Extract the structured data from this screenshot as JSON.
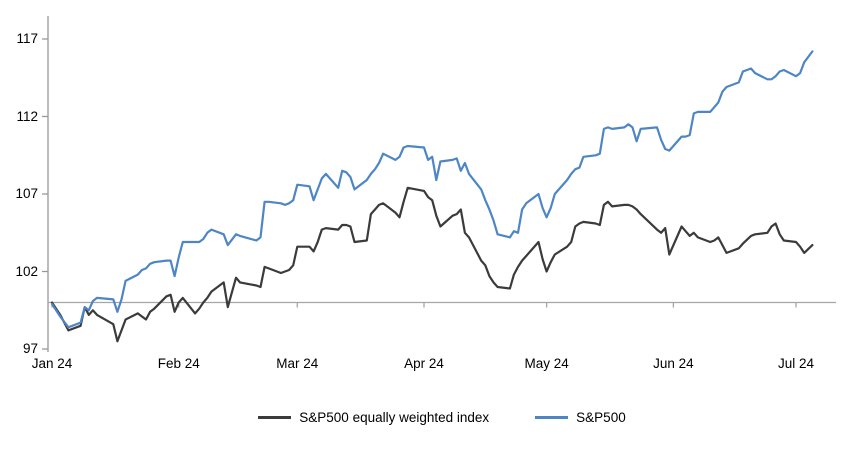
{
  "chart_data": {
    "type": "line",
    "title": "",
    "x_axis": {
      "tick_labels": [
        "Jan 24",
        "Feb 24",
        "Mar 24",
        "Apr 24",
        "May 24",
        "Jun 24",
        "Jul 24"
      ]
    },
    "y_axis": {
      "ticks": [
        117,
        112,
        107,
        102,
        97
      ],
      "min": 97,
      "max": 117,
      "baseline": 100
    },
    "grid": "off",
    "legend_position": "bottom-center",
    "legend": [
      {
        "label": "S&P500 equally weighted index",
        "color": "#3b3b3b"
      },
      {
        "label": "S&P500",
        "color": "#4e86c5"
      }
    ],
    "colors": {
      "axis": "#999999",
      "baseline": "#a6a6a6",
      "text": "#000000"
    },
    "dates": [
      "Jan 1",
      "Jan 3",
      "Jan 5",
      "Jan 8",
      "Jan 9",
      "Jan 10",
      "Jan 11",
      "Jan 12",
      "Jan 16",
      "Jan 17",
      "Jan 18",
      "Jan 19",
      "Jan 22",
      "Jan 23",
      "Jan 24",
      "Jan 25",
      "Jan 26",
      "Jan 29",
      "Jan 30",
      "Jan 31",
      "Feb 1",
      "Feb 2",
      "Feb 5",
      "Feb 6",
      "Feb 7",
      "Feb 8",
      "Feb 9",
      "Feb 12",
      "Feb 13",
      "Feb 15",
      "Feb 16",
      "Feb 20",
      "Feb 21",
      "Feb 22",
      "Feb 23",
      "Feb 26",
      "Feb 27",
      "Feb 28",
      "Feb 29",
      "Mar 1",
      "Mar 4",
      "Mar 5",
      "Mar 6",
      "Mar 7",
      "Mar 8",
      "Mar 11",
      "Mar 12",
      "Mar 13",
      "Mar 14",
      "Mar 15",
      "Mar 18",
      "Mar 19",
      "Mar 20",
      "Mar 21",
      "Mar 22",
      "Mar 25",
      "Mar 26",
      "Mar 27",
      "Mar 28",
      "Apr 1",
      "Apr 2",
      "Apr 3",
      "Apr 4",
      "Apr 5",
      "Apr 8",
      "Apr 9",
      "Apr 10",
      "Apr 11",
      "Apr 12",
      "Apr 15",
      "Apr 16",
      "Apr 17",
      "Apr 18",
      "Apr 19",
      "Apr 22",
      "Apr 23",
      "Apr 24",
      "Apr 25",
      "Apr 26",
      "Apr 29",
      "Apr 30",
      "May 1",
      "May 2",
      "May 3",
      "May 6",
      "May 7",
      "May 8",
      "May 9",
      "May 10",
      "May 13",
      "May 14",
      "May 15",
      "May 16",
      "May 17",
      "May 20",
      "May 21",
      "May 22",
      "May 23",
      "May 24",
      "May 28",
      "May 29",
      "May 30",
      "May 31",
      "Jun 3",
      "Jun 4",
      "Jun 5",
      "Jun 6",
      "Jun 7",
      "Jun 10",
      "Jun 11",
      "Jun 12",
      "Jun 13",
      "Jun 14",
      "Jun 17",
      "Jun 18",
      "Jun 20",
      "Jun 21",
      "Jun 24",
      "Jun 25",
      "Jun 26",
      "Jun 27",
      "Jun 28",
      "Jul 1",
      "Jul 2",
      "Jul 3",
      "Jul 5"
    ],
    "series": [
      {
        "name": "S&P500 equally weighted index",
        "color": "#3b3b3b",
        "values": [
          100.0,
          99.2,
          98.2,
          98.5,
          99.7,
          99.2,
          99.5,
          99.2,
          98.6,
          97.5,
          98.2,
          98.9,
          99.3,
          99.1,
          98.9,
          99.4,
          99.6,
          100.4,
          100.5,
          99.4,
          100.0,
          100.3,
          99.3,
          99.6,
          100.0,
          100.3,
          100.7,
          101.3,
          99.7,
          101.6,
          101.3,
          101.1,
          101.0,
          102.3,
          102.2,
          101.9,
          102.0,
          102.1,
          102.4,
          103.6,
          103.6,
          103.3,
          103.9,
          104.7,
          104.8,
          104.7,
          105.0,
          105.0,
          104.9,
          103.9,
          104.0,
          105.7,
          106.0,
          106.3,
          106.4,
          105.8,
          105.5,
          106.5,
          107.4,
          107.2,
          106.8,
          106.6,
          105.6,
          104.9,
          105.6,
          105.7,
          106.0,
          104.5,
          104.2,
          102.7,
          102.4,
          101.7,
          101.3,
          101.0,
          100.9,
          101.8,
          102.3,
          102.7,
          103.0,
          103.9,
          102.8,
          102.0,
          102.6,
          103.1,
          103.6,
          103.9,
          104.9,
          105.1,
          105.2,
          105.1,
          105.0,
          106.3,
          106.5,
          106.2,
          106.3,
          106.3,
          106.2,
          106.0,
          105.7,
          104.7,
          104.5,
          104.8,
          103.1,
          104.9,
          104.6,
          104.3,
          104.5,
          104.2,
          103.9,
          104.0,
          104.2,
          103.7,
          103.2,
          103.5,
          103.8,
          104.3,
          104.4,
          104.5,
          104.9,
          105.1,
          104.4,
          104.0,
          103.9,
          103.6,
          103.2,
          103.7
        ]
      },
      {
        "name": "S&P500",
        "color": "#4e86c5",
        "values": [
          99.9,
          99.1,
          98.4,
          98.7,
          99.7,
          99.5,
          100.1,
          100.3,
          100.2,
          99.4,
          100.2,
          101.4,
          101.8,
          102.1,
          102.2,
          102.5,
          102.6,
          102.7,
          102.7,
          101.7,
          102.9,
          103.9,
          103.9,
          103.9,
          104.1,
          104.5,
          104.7,
          104.4,
          103.7,
          104.4,
          104.3,
          104.0,
          104.2,
          106.5,
          106.5,
          106.4,
          106.3,
          106.4,
          106.6,
          107.6,
          107.5,
          106.6,
          107.3,
          108.0,
          108.3,
          107.4,
          108.5,
          108.4,
          108.1,
          107.3,
          107.9,
          108.3,
          108.6,
          109.0,
          109.6,
          109.2,
          109.4,
          110.0,
          110.1,
          110.0,
          109.2,
          109.4,
          107.9,
          109.1,
          109.2,
          109.3,
          108.5,
          109.0,
          108.3,
          107.3,
          106.6,
          106.0,
          105.3,
          104.4,
          104.2,
          104.6,
          104.5,
          106.0,
          106.4,
          107.0,
          106.1,
          105.5,
          106.1,
          107.0,
          107.9,
          108.3,
          108.6,
          108.7,
          109.4,
          109.5,
          109.6,
          111.2,
          111.3,
          111.2,
          111.3,
          111.5,
          111.3,
          110.4,
          111.2,
          111.3,
          110.5,
          109.9,
          109.8,
          110.7,
          110.7,
          110.8,
          112.2,
          112.3,
          112.3,
          112.6,
          112.9,
          113.6,
          113.9,
          114.2,
          114.9,
          115.1,
          114.8,
          114.4,
          114.4,
          114.6,
          114.9,
          115.0,
          114.6,
          114.8,
          115.5,
          116.2
        ]
      }
    ]
  }
}
